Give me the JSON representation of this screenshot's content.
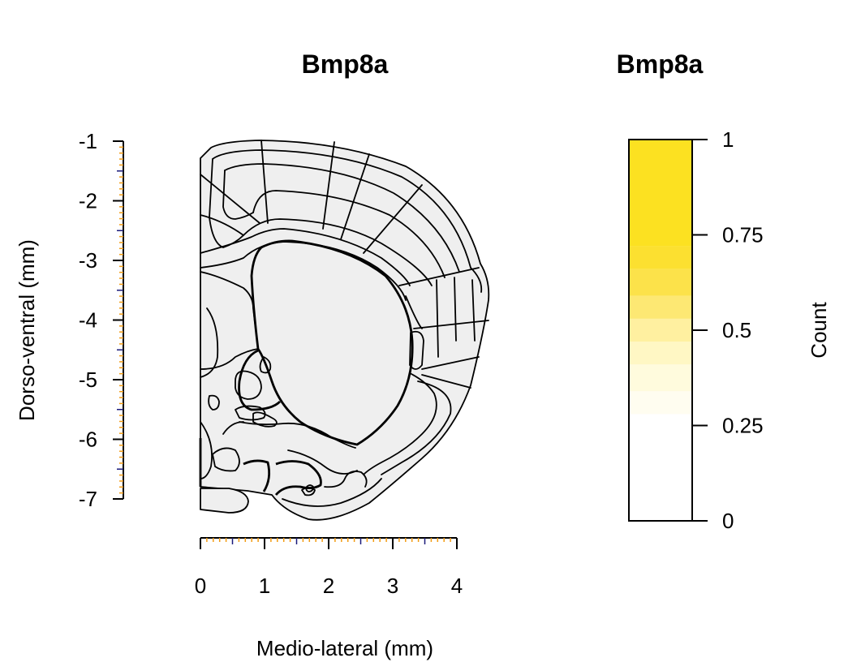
{
  "left_panel": {
    "title": "Bmp8a",
    "y_axis": {
      "label": "Dorso-ventral (mm)",
      "ticks": [
        "-1",
        "-2",
        "-3",
        "-4",
        "-5",
        "-6",
        "-7"
      ],
      "minor_tick_color": "#f39c12",
      "mid_tick_color": "#1a1a7a"
    },
    "x_axis": {
      "label": "Medio-lateral (mm)",
      "ticks": [
        "0",
        "1",
        "2",
        "3",
        "4"
      ],
      "minor_tick_color": "#f39c12",
      "mid_tick_color": "#1a1a7a"
    },
    "section": {
      "fill_color": "#efefef",
      "stroke_color": "#000000",
      "icon": "coronal-brain-section"
    }
  },
  "right_panel": {
    "title": "Bmp8a",
    "legend": {
      "label": "Count",
      "ticks": [
        "0",
        "0.25",
        "0.5",
        "0.75",
        "1"
      ],
      "color_scale": [
        {
          "from": 0.0,
          "to": 0.28,
          "color": "#ffffff"
        },
        {
          "from": 0.28,
          "to": 0.34,
          "color": "#fffdf0"
        },
        {
          "from": 0.34,
          "to": 0.41,
          "color": "#fffbdd"
        },
        {
          "from": 0.41,
          "to": 0.47,
          "color": "#fff7c4"
        },
        {
          "from": 0.47,
          "to": 0.53,
          "color": "#fff0a0"
        },
        {
          "from": 0.53,
          "to": 0.59,
          "color": "#fde873"
        },
        {
          "from": 0.59,
          "to": 0.66,
          "color": "#fce24a"
        },
        {
          "from": 0.66,
          "to": 0.72,
          "color": "#fce030"
        },
        {
          "from": 0.72,
          "to": 1.0,
          "color": "#fce121"
        }
      ]
    }
  }
}
